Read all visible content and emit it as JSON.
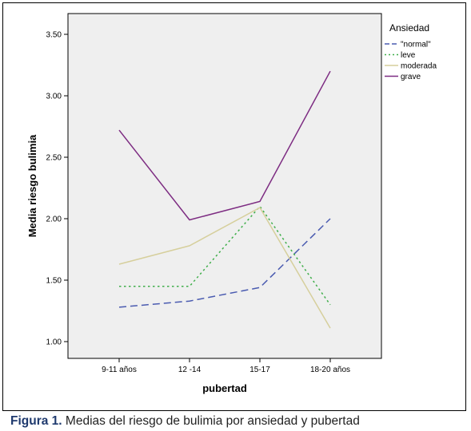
{
  "chart_data": {
    "type": "line",
    "xlabel": "pubertad",
    "ylabel": "Media riesgo bulimia",
    "categories": [
      "9-11 años",
      "12 -14",
      "15-17",
      "18-20 años"
    ],
    "y_ticks": [
      "1.00",
      "1.50",
      "2.00",
      "2.50",
      "3.00",
      "3.50"
    ],
    "ylim": [
      0.9,
      3.68
    ],
    "legend_title": "Ansiedad",
    "legend_position": "right",
    "grid": false,
    "series": [
      {
        "name": "\"normal\"",
        "values": [
          1.28,
          1.33,
          1.44,
          2.0
        ],
        "color": "#4a5bb0",
        "style": "dashed"
      },
      {
        "name": "leve",
        "values": [
          1.45,
          1.45,
          2.1,
          1.3
        ],
        "color": "#3fae4a",
        "style": "dotted"
      },
      {
        "name": "moderada",
        "values": [
          1.63,
          1.78,
          2.09,
          1.11
        ],
        "color": "#d6cf9c",
        "style": "solid"
      },
      {
        "name": "grave",
        "values": [
          2.72,
          1.99,
          2.14,
          3.2
        ],
        "color": "#7d2c82",
        "style": "solid"
      }
    ]
  },
  "caption": {
    "label": "Figura 1.",
    "text": " Medias del riesgo de bulimia por ansiedad y pubertad"
  }
}
